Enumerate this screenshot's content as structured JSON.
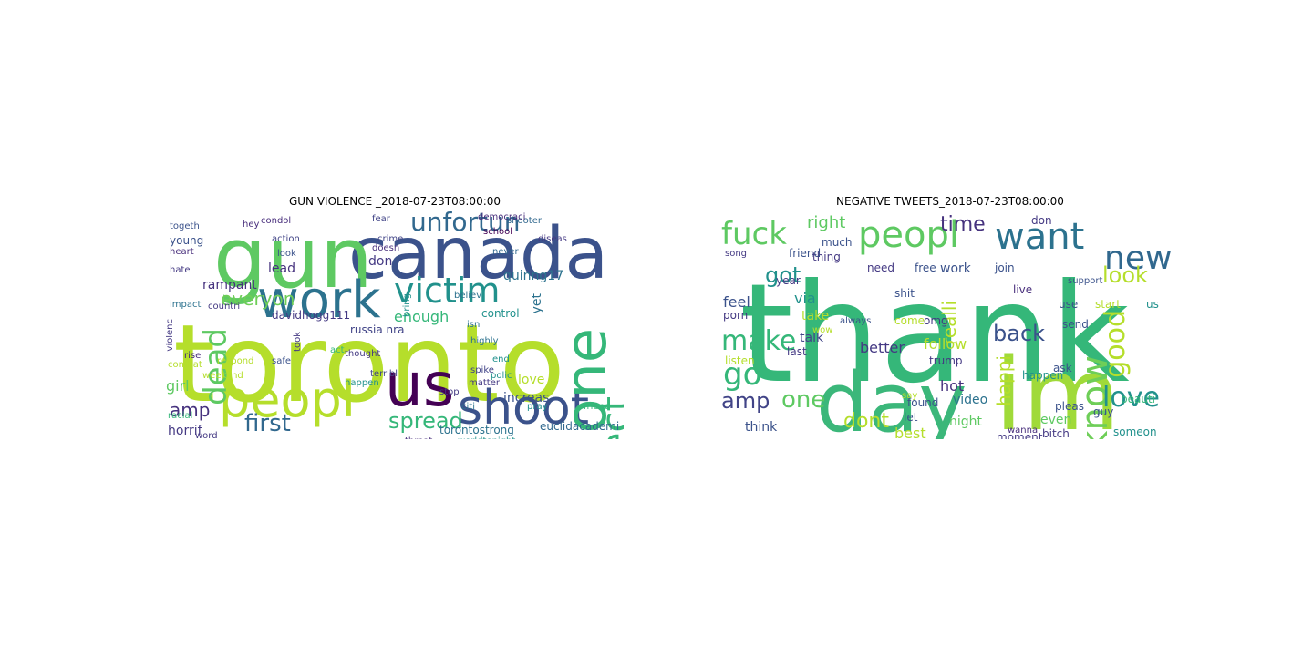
{
  "left": {
    "title": "GUN VIOLENCE _2018-07-23T08:00:00",
    "words": [
      {
        "text": "toronto",
        "color": "#b5de2b"
      },
      {
        "text": "canada",
        "color": "#3b528b"
      },
      {
        "text": "gun",
        "color": "#5ec962"
      },
      {
        "text": "work",
        "color": "#2c728e"
      },
      {
        "text": "peopl",
        "color": "#b5de2b"
      },
      {
        "text": "us",
        "color": "#440154"
      },
      {
        "text": "shoot",
        "color": "#3b528b"
      },
      {
        "text": "victim",
        "color": "#21918c"
      },
      {
        "text": "unfortun",
        "color": "#31688e"
      },
      {
        "text": "one",
        "color": "#35b779"
      },
      {
        "text": "affect",
        "color": "#35b779"
      },
      {
        "text": "dead",
        "color": "#5ec962"
      },
      {
        "text": "everyon",
        "color": "#6ece58"
      },
      {
        "text": "first",
        "color": "#31688e"
      },
      {
        "text": "spread",
        "color": "#35b779"
      },
      {
        "text": "amp",
        "color": "#46327e"
      },
      {
        "text": "girl",
        "color": "#5ec962"
      },
      {
        "text": "enough",
        "color": "#35b779"
      },
      {
        "text": "lead",
        "color": "#46327e"
      },
      {
        "text": "rampant",
        "color": "#46327e"
      },
      {
        "text": "quinng17",
        "color": "#2c728e"
      },
      {
        "text": "yet",
        "color": "#2c728e"
      },
      {
        "text": "love",
        "color": "#b5de2b"
      },
      {
        "text": "increas",
        "color": "#3b528b"
      },
      {
        "text": "control",
        "color": "#21918c"
      },
      {
        "text": "horrif",
        "color": "#443983"
      },
      {
        "text": "torontostrong",
        "color": "#2c728e"
      },
      {
        "text": "euclidacademi",
        "color": "#31688e"
      },
      {
        "text": "davidhogg111",
        "color": "#443983"
      },
      {
        "text": "russia nra",
        "color": "#414487"
      },
      {
        "text": "don",
        "color": "#443983"
      },
      {
        "text": "young",
        "color": "#3b528b"
      },
      {
        "text": "hey",
        "color": "#472d7b"
      },
      {
        "text": "action",
        "color": "#414487"
      },
      {
        "text": "crime",
        "color": "#414487"
      },
      {
        "text": "school",
        "color": "#440154"
      },
      {
        "text": "shooter",
        "color": "#31688e"
      },
      {
        "text": "never",
        "color": "#31688e"
      },
      {
        "text": "diseas",
        "color": "#443983"
      },
      {
        "text": "democraci",
        "color": "#472d7b"
      },
      {
        "text": "heart",
        "color": "#472d7b"
      },
      {
        "text": "hate",
        "color": "#443983"
      },
      {
        "text": "impact",
        "color": "#2c728e"
      },
      {
        "text": "countri",
        "color": "#443983"
      },
      {
        "text": "fear",
        "color": "#414487"
      },
      {
        "text": "doesn",
        "color": "#472d7b"
      },
      {
        "text": "look",
        "color": "#3b528b"
      },
      {
        "text": "believ",
        "color": "#2c728e"
      },
      {
        "text": "highly",
        "color": "#2c728e"
      },
      {
        "text": "end",
        "color": "#21918c"
      },
      {
        "text": "polic",
        "color": "#21918c"
      },
      {
        "text": "act",
        "color": "#35b779"
      },
      {
        "text": "safe",
        "color": "#3b528b"
      },
      {
        "text": "took",
        "color": "#443983"
      },
      {
        "text": "thought",
        "color": "#443983"
      },
      {
        "text": "rise",
        "color": "#472d7b"
      },
      {
        "text": "respond",
        "color": "#b5de2b"
      },
      {
        "text": "terribl",
        "color": "#414487"
      },
      {
        "text": "happen",
        "color": "#21918c"
      },
      {
        "text": "matter",
        "color": "#443983"
      },
      {
        "text": "stop",
        "color": "#443983"
      },
      {
        "text": "citi",
        "color": "#2c728e"
      },
      {
        "text": "pray",
        "color": "#21918c"
      },
      {
        "text": "friend",
        "color": "#35b779"
      },
      {
        "text": "spike",
        "color": "#414487"
      },
      {
        "text": "word",
        "color": "#443983"
      },
      {
        "text": "threat",
        "color": "#472d7b"
      },
      {
        "text": "worldtonight",
        "color": "#21918c"
      },
      {
        "text": "racial",
        "color": "#35b779"
      },
      {
        "text": "violenc",
        "color": "#443983"
      },
      {
        "text": "combat",
        "color": "#b5de2b"
      },
      {
        "text": "togeth",
        "color": "#3b528b"
      },
      {
        "text": "weekend",
        "color": "#b5de2b"
      },
      {
        "text": "isn",
        "color": "#2c728e"
      },
      {
        "text": "condol",
        "color": "#472d7b"
      },
      {
        "text": "bring",
        "color": "#21918c"
      }
    ]
  },
  "right": {
    "title": "NEGATIVE TWEETS_2018-07-23T08:00:00",
    "words": [
      {
        "text": "thank",
        "color": "#35b779"
      },
      {
        "text": "day",
        "color": "#3bb77a"
      },
      {
        "text": "im",
        "color": "#a0da39"
      },
      {
        "text": "peopl",
        "color": "#5ec962"
      },
      {
        "text": "want",
        "color": "#2c728e"
      },
      {
        "text": "know",
        "color": "#6ece58"
      },
      {
        "text": "new",
        "color": "#31688e"
      },
      {
        "text": "fuck",
        "color": "#5ec962"
      },
      {
        "text": "good",
        "color": "#b5de2b"
      },
      {
        "text": "look",
        "color": "#b5de2b"
      },
      {
        "text": "love",
        "color": "#21918c"
      },
      {
        "text": "back",
        "color": "#3b528b"
      },
      {
        "text": "make",
        "color": "#35b779"
      },
      {
        "text": "go",
        "color": "#35b779"
      },
      {
        "text": "amp",
        "color": "#414487"
      },
      {
        "text": "one",
        "color": "#5ec962"
      },
      {
        "text": "dont",
        "color": "#b5de2b"
      },
      {
        "text": "time",
        "color": "#46327e"
      },
      {
        "text": "got",
        "color": "#21918c"
      },
      {
        "text": "happi",
        "color": "#b5de2b"
      },
      {
        "text": "right",
        "color": "#5ec962"
      },
      {
        "text": "much",
        "color": "#3b528b"
      },
      {
        "text": "thing",
        "color": "#443983"
      },
      {
        "text": "friend",
        "color": "#3b528b"
      },
      {
        "text": "need",
        "color": "#443983"
      },
      {
        "text": "free",
        "color": "#3b528b"
      },
      {
        "text": "work",
        "color": "#3b528b"
      },
      {
        "text": "join",
        "color": "#3b528b"
      },
      {
        "text": "live",
        "color": "#472d7b"
      },
      {
        "text": "song",
        "color": "#443983"
      },
      {
        "text": "year",
        "color": "#443983"
      },
      {
        "text": "feel",
        "color": "#3b528b"
      },
      {
        "text": "via",
        "color": "#21918c"
      },
      {
        "text": "take",
        "color": "#b5de2b"
      },
      {
        "text": "shit",
        "color": "#3b528b"
      },
      {
        "text": "use",
        "color": "#3b528b"
      },
      {
        "text": "start",
        "color": "#b5de2b"
      },
      {
        "text": "us",
        "color": "#21918c"
      },
      {
        "text": "realli",
        "color": "#b5de2b"
      },
      {
        "text": "omg",
        "color": "#443983"
      },
      {
        "text": "follow",
        "color": "#b5de2b"
      },
      {
        "text": "better",
        "color": "#443983"
      },
      {
        "text": "talk",
        "color": "#414487"
      },
      {
        "text": "trump",
        "color": "#443983"
      },
      {
        "text": "porn",
        "color": "#443983"
      },
      {
        "text": "last",
        "color": "#443983"
      },
      {
        "text": "hot",
        "color": "#46327e"
      },
      {
        "text": "video",
        "color": "#2c728e"
      },
      {
        "text": "think",
        "color": "#3b528b"
      },
      {
        "text": "best",
        "color": "#b5de2b"
      },
      {
        "text": "night",
        "color": "#5ec962"
      },
      {
        "text": "even",
        "color": "#5ec962"
      },
      {
        "text": "pleas",
        "color": "#3b528b"
      },
      {
        "text": "guy",
        "color": "#3b528b"
      },
      {
        "text": "bitch",
        "color": "#443983"
      },
      {
        "text": "moment",
        "color": "#443983"
      },
      {
        "text": "wanna",
        "color": "#472d7b"
      },
      {
        "text": "found",
        "color": "#3b528b"
      },
      {
        "text": "let",
        "color": "#3b528b"
      },
      {
        "text": "ask",
        "color": "#3b528b"
      },
      {
        "text": "happen",
        "color": "#21918c"
      },
      {
        "text": "send",
        "color": "#3b528b"
      },
      {
        "text": "support",
        "color": "#3b528b"
      },
      {
        "text": "always",
        "color": "#3b528b"
      },
      {
        "text": "listen",
        "color": "#b5de2b"
      },
      {
        "text": "come",
        "color": "#b5de2b"
      },
      {
        "text": "say",
        "color": "#b5de2b"
      },
      {
        "text": "wow",
        "color": "#b5de2b"
      },
      {
        "text": "don",
        "color": "#443983"
      },
      {
        "text": "someon",
        "color": "#21918c"
      },
      {
        "text": "beauti",
        "color": "#35b779"
      }
    ]
  }
}
